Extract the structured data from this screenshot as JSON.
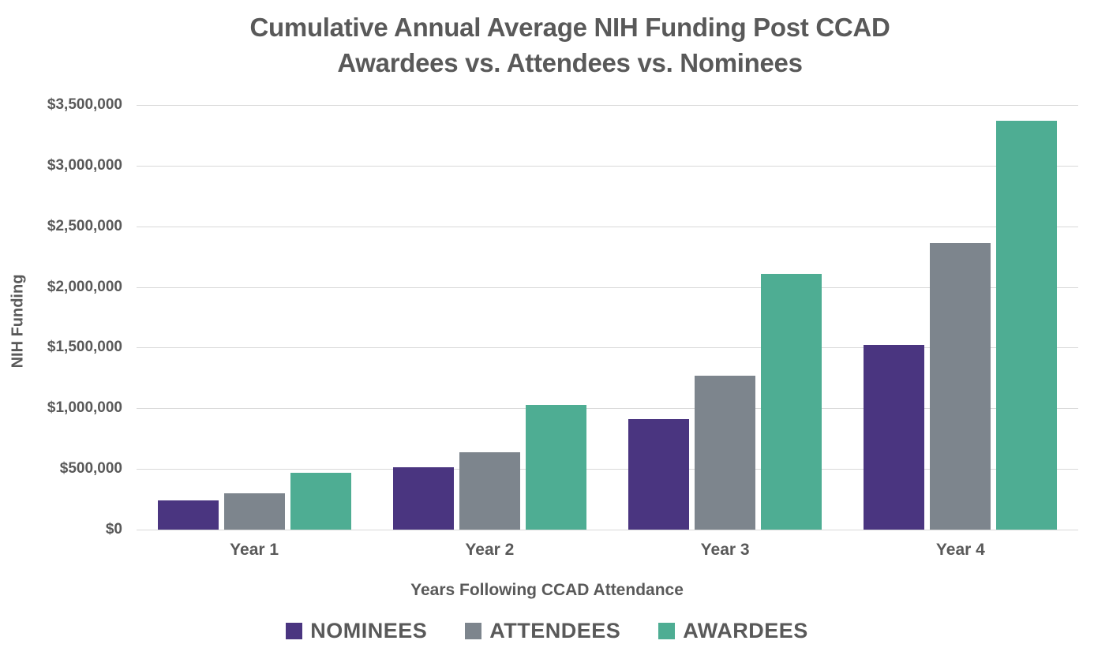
{
  "chart": {
    "title_line1": "Cumulative Annual Average NIH Funding Post CCAD",
    "title_line2": "Awardees vs. Attendees vs. Nominees",
    "ylabel": "NIH Funding",
    "xlabel": "Years Following CCAD Attendance"
  },
  "chart_data": {
    "type": "bar",
    "title": "Cumulative Annual Average NIH Funding Post CCAD Awardees vs. Attendees vs. Nominees",
    "xlabel": "Years Following CCAD Attendance",
    "ylabel": "NIH Funding",
    "categories": [
      "Year 1",
      "Year 2",
      "Year 3",
      "Year 4"
    ],
    "series": [
      {
        "name": "NOMINEES",
        "color": "#4A3580",
        "values": [
          240000,
          515000,
          910000,
          1520000
        ]
      },
      {
        "name": "ATTENDEES",
        "color": "#7D858D",
        "values": [
          300000,
          640000,
          1270000,
          2360000
        ]
      },
      {
        "name": "AWARDEES",
        "color": "#4EAD93",
        "values": [
          470000,
          1030000,
          2105000,
          3370000
        ]
      }
    ],
    "ylim": [
      0,
      3500000
    ],
    "ytick_interval": 500000,
    "ytick_labels": [
      "$0",
      "$500,000",
      "$1,000,000",
      "$1,500,000",
      "$2,000,000",
      "$2,500,000",
      "$3,000,000",
      "$3,500,000"
    ],
    "grid": true,
    "legend_position": "bottom"
  },
  "colors": {
    "background": "#FFFFFF",
    "text": "#595959",
    "gridline": "#D9D9D9",
    "nominees": "#4A3580",
    "attendees": "#7D858D",
    "awardees": "#4EAD93"
  }
}
